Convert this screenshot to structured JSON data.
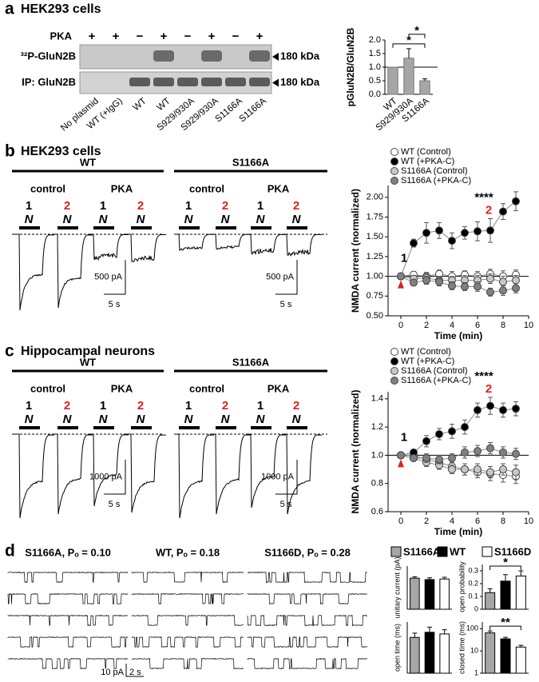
{
  "panel_a": {
    "label": "a",
    "title": "HEK293 cells",
    "blot": {
      "treatment_label": "PKA",
      "treatment": [
        "+",
        "+",
        "−",
        "+",
        "−",
        "+",
        "−",
        "+"
      ],
      "rows": [
        "³²P-GluN2B",
        "IP: GluN2B"
      ],
      "size_markers": [
        "180 kDa",
        "180 kDa"
      ],
      "lanes": [
        "No plasmid",
        "WT (+IgG)",
        "WT",
        "WT",
        "S929/930A",
        "S929/930A",
        "S1166A",
        "S1166A"
      ]
    },
    "chart": {
      "type": "bar",
      "ylabel": "pGluN2B/GluN2B",
      "categories": [
        "WT",
        "S929/930A",
        "S1166A"
      ],
      "values": [
        1.0,
        1.33,
        0.5
      ],
      "errors": [
        null,
        0.35,
        0.07
      ],
      "color": "#a6a6a6",
      "ylim": [
        0,
        2
      ],
      "yticks": [
        {
          "value": 0,
          "label": "0.0"
        },
        0.5,
        {
          "value": 1,
          "label": "1.0"
        },
        1.5,
        {
          "value": 2,
          "label": "2.0"
        }
      ],
      "annotations": [
        "*",
        "*"
      ]
    }
  },
  "panel_b": {
    "label": "b",
    "title": "HEK293 cells",
    "groups": [
      "WT",
      "S1166A"
    ],
    "conditions": [
      "control",
      "PKA",
      "control",
      "PKA"
    ],
    "sweep_labels": [
      "1",
      "2",
      "1",
      "2",
      "1",
      "2",
      "1",
      "2"
    ],
    "drug_labels": [
      "N",
      "N",
      "N",
      "N",
      "N",
      "N",
      "N",
      "N"
    ],
    "scale_bars": {
      "current": [
        "500 pA",
        "500 pA"
      ],
      "time": [
        "5 s",
        "5 s"
      ]
    },
    "chart": {
      "type": "line",
      "ylabel": "NMDA current (normalized)",
      "xlabel": "Time (min)",
      "x": [
        0,
        1,
        2,
        3,
        4,
        5,
        6,
        7,
        8,
        9
      ],
      "xlim": [
        -1,
        10
      ],
      "xticks": [
        0,
        2,
        4,
        6,
        8,
        10
      ],
      "ylim": [
        0.5,
        2.15
      ],
      "yticks": [
        {
          "value": 0.5,
          "label": "0.50"
        },
        0.75,
        {
          "value": 1,
          "label": "1.00"
        },
        1.25,
        {
          "value": 1.5,
          "label": "1.50"
        },
        1.75,
        {
          "value": 2,
          "label": "2.00"
        }
      ],
      "series": [
        {
          "name": "WT (Control)",
          "color": "#ffffff",
          "values": [
            1.0,
            1.02,
            1.0,
            1.03,
            1.0,
            1.02,
            1.0,
            1.03,
            1.0,
            1.02
          ],
          "errors": [
            0,
            0.04,
            0.05,
            0.05,
            0.06,
            0.05,
            0.06,
            0.06,
            0.07,
            0.06
          ]
        },
        {
          "name": "WT (+PKA-C)",
          "color": "#000000",
          "values": [
            1.0,
            1.42,
            1.55,
            1.58,
            1.45,
            1.55,
            1.57,
            1.58,
            1.82,
            1.95
          ],
          "errors": [
            0,
            0.05,
            0.13,
            0.1,
            0.1,
            0.08,
            0.12,
            0.15,
            0.1,
            0.12
          ]
        },
        {
          "name": "S1166A (Control)",
          "color": "#c8c8c8",
          "values": [
            1.0,
            0.97,
            0.98,
            0.95,
            0.95,
            0.95,
            0.95,
            0.97,
            0.93,
            0.95
          ],
          "errors": [
            0,
            0.04,
            0.05,
            0.05,
            0.05,
            0.06,
            0.06,
            0.06,
            0.07,
            0.06
          ]
        },
        {
          "name": "S1166A (+PKA-C)",
          "color": "#808080",
          "values": [
            1.0,
            0.92,
            0.95,
            0.93,
            0.88,
            0.87,
            0.87,
            0.8,
            0.82,
            0.85
          ],
          "errors": [
            0,
            0.04,
            0.05,
            0.05,
            0.05,
            0.05,
            0.06,
            0.05,
            0.06,
            0.06
          ]
        }
      ],
      "annotations": [
        "****",
        "1",
        "2"
      ]
    }
  },
  "panel_c": {
    "label": "c",
    "title": "Hippocampal neurons",
    "groups": [
      "WT",
      "S1166A"
    ],
    "conditions": [
      "control",
      "PKA",
      "control",
      "PKA"
    ],
    "sweep_labels": [
      "1",
      "2",
      "1",
      "2",
      "1",
      "2",
      "1",
      "2"
    ],
    "drug_labels": [
      "N",
      "N",
      "N",
      "N",
      "N",
      "N",
      "N",
      "N"
    ],
    "scale_bars": {
      "current": [
        "1000 pA",
        "1000 pA"
      ],
      "time": [
        "5 s",
        "5 s"
      ]
    },
    "chart": {
      "type": "line",
      "ylabel": "NMDA current (normalized)",
      "xlabel": "Time (min)",
      "x": [
        0,
        1,
        2,
        3,
        4,
        5,
        6,
        7,
        8,
        9
      ],
      "xlim": [
        -1,
        10
      ],
      "xticks": [
        0,
        2,
        4,
        6,
        8,
        10
      ],
      "ylim": [
        0.6,
        1.45
      ],
      "yticks": [
        0.6,
        0.8,
        {
          "value": 1,
          "label": "1.0"
        },
        1.2,
        1.4
      ],
      "series": [
        {
          "name": "WT (Control)",
          "color": "#ffffff",
          "values": [
            1.0,
            1.0,
            0.97,
            0.95,
            0.92,
            0.9,
            0.88,
            0.87,
            0.86,
            0.85
          ],
          "errors": [
            0,
            0.02,
            0.03,
            0.03,
            0.04,
            0.04,
            0.04,
            0.05,
            0.05,
            0.05
          ]
        },
        {
          "name": "WT (+PKA-C)",
          "color": "#000000",
          "values": [
            1.0,
            1.02,
            1.1,
            1.15,
            1.17,
            1.2,
            1.32,
            1.35,
            1.32,
            1.33
          ],
          "errors": [
            0,
            0.02,
            0.04,
            0.04,
            0.05,
            0.05,
            0.05,
            0.06,
            0.05,
            0.05
          ]
        },
        {
          "name": "S1166A (Control)",
          "color": "#c8c8c8",
          "values": [
            1.0,
            0.98,
            0.95,
            0.93,
            0.9,
            0.9,
            0.9,
            0.88,
            0.9,
            0.88
          ],
          "errors": [
            0,
            0.02,
            0.03,
            0.03,
            0.03,
            0.04,
            0.04,
            0.04,
            0.04,
            0.05
          ]
        },
        {
          "name": "S1166A (+PKA-C)",
          "color": "#808080",
          "values": [
            1.0,
            0.98,
            0.98,
            0.97,
            0.98,
            1.02,
            1.03,
            1.05,
            1.02,
            1.01
          ],
          "errors": [
            0,
            0.02,
            0.03,
            0.03,
            0.03,
            0.04,
            0.04,
            0.04,
            0.04,
            0.04
          ]
        }
      ],
      "annotations": [
        "****",
        "1",
        "2"
      ]
    }
  },
  "panel_d": {
    "label": "d",
    "trace_titles": [
      "S1166A, Pₒ = 0.10",
      "WT, Pₒ = 0.18",
      "S1166D, Pₒ = 0.28"
    ],
    "scale_bars": {
      "current": "10 pA",
      "time": "2 s"
    },
    "legend": {
      "names": [
        "S1166A",
        "WT",
        "S1166D"
      ],
      "colors": [
        "#a6a6a6",
        "#000000",
        "#ffffff"
      ]
    },
    "charts": [
      {
        "type": "bar",
        "ylabel": "unitary current (pA)",
        "values": [
          10.8,
          10.3,
          10.5
        ],
        "errors": [
          0.5,
          0.6,
          0.6
        ],
        "ylim": [
          0,
          15
        ]
      },
      {
        "type": "bar",
        "ylabel": "open probability",
        "values": [
          0.13,
          0.22,
          0.26
        ],
        "errors": [
          0.03,
          0.05,
          0.04
        ],
        "ylim": [
          0,
          0.35
        ],
        "yticks": [
          0,
          0.1,
          0.2,
          0.3
        ],
        "annotations": [
          "*"
        ]
      },
      {
        "type": "bar",
        "ylabel": "open time (ms)",
        "values": [
          4.2,
          4.8,
          4.6
        ],
        "errors": [
          0.5,
          0.6,
          0.5
        ],
        "ylim": [
          0,
          6
        ]
      },
      {
        "type": "bar",
        "ylabel": "closed time (ms)",
        "log": true,
        "values": [
          65,
          35,
          15
        ],
        "errors": [
          15,
          6,
          3
        ],
        "ylim": [
          1,
          200
        ],
        "yticks": [
          1,
          10,
          100
        ],
        "annotations": [
          "**"
        ]
      }
    ]
  }
}
